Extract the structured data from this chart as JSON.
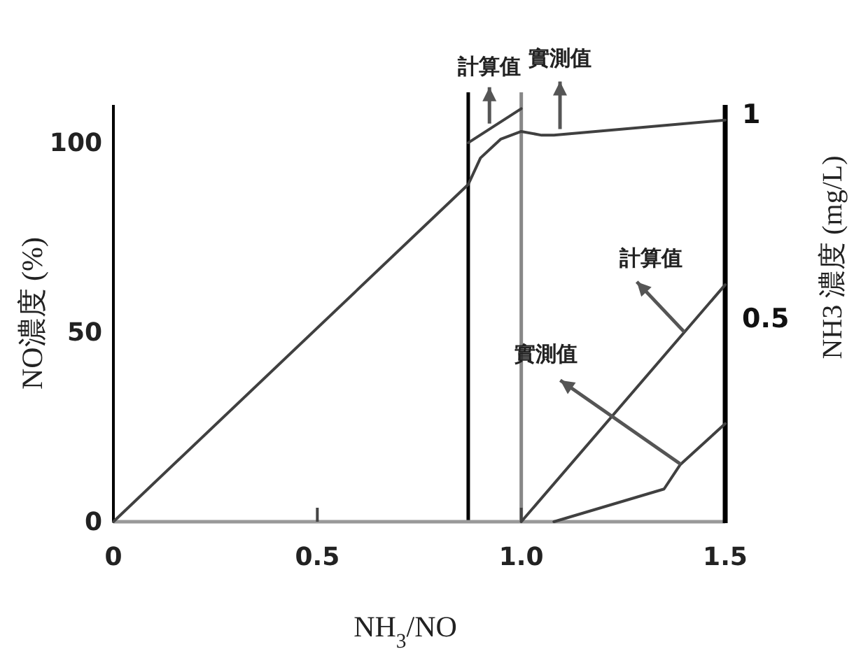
{
  "chart_data": {
    "type": "line",
    "xlabel": "NH$_{3}$/NO",
    "ylabel": "NO濃度 (%)",
    "y2label": "NH3 濃度 (mg/L)",
    "xlim": [
      0,
      1.5
    ],
    "xticks": [
      0,
      0.5,
      {
        "value": 1.0,
        "label": "1.0"
      },
      1.5
    ],
    "ylim": [
      0,
      110
    ],
    "yticks": [
      0,
      50,
      100
    ],
    "y2lim": [
      0,
      1.02
    ],
    "y2ticks": [
      0.5,
      1
    ],
    "ref_lines": [
      {
        "axis": "x",
        "value": 0.87,
        "color": "#000000"
      },
      {
        "axis": "x",
        "value": 1.0,
        "color": "#888888"
      }
    ],
    "series": [
      {
        "name": "實測值",
        "color": "#404040",
        "x": [
          0,
          0.87,
          0.9,
          0.95,
          1.0,
          1.05,
          1.08,
          1.5
        ],
        "values": [
          0,
          89,
          96,
          101,
          103,
          102,
          102,
          106
        ]
      },
      {
        "name": "計算值",
        "color": "#404040",
        "x": [
          0.87,
          1.0
        ],
        "values": [
          100,
          109
        ]
      },
      {
        "name": "計算值",
        "color": "#404040",
        "axis": "y2",
        "x": [
          1.0,
          1.5
        ],
        "values": [
          0,
          0.58
        ]
      },
      {
        "name": "實測值",
        "color": "#404040",
        "axis": "y2",
        "x": [
          1.08,
          1.35,
          1.39,
          1.5
        ],
        "values": [
          0,
          0.08,
          0.14,
          0.24
        ]
      }
    ]
  }
}
